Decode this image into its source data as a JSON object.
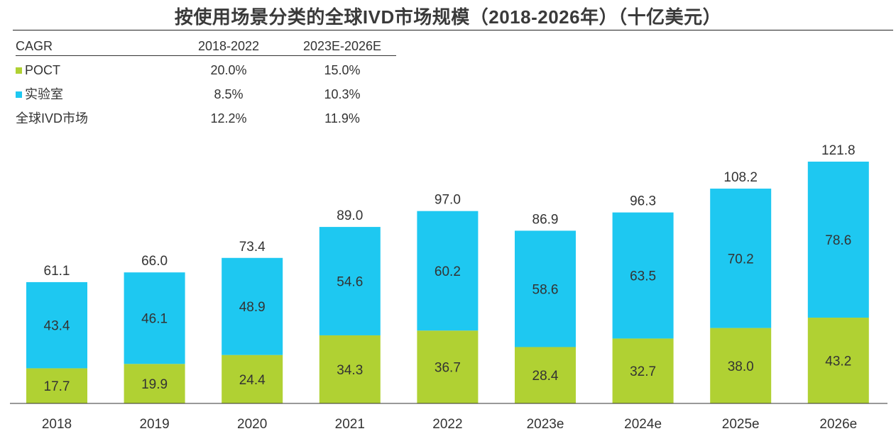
{
  "chart_data": {
    "type": "bar",
    "stacked": true,
    "title": "按使用场景分类的全球IVD市场规模（2018-2026年）（十亿美元）",
    "categories": [
      "2018",
      "2019",
      "2020",
      "2021",
      "2022",
      "2023e",
      "2024e",
      "2025e",
      "2026e"
    ],
    "series": [
      {
        "name": "POCT",
        "color": "#b0d133",
        "values": [
          17.7,
          19.9,
          24.4,
          34.3,
          36.7,
          28.4,
          32.7,
          38.0,
          43.2
        ]
      },
      {
        "name": "实验室",
        "color": "#1ec8f1",
        "values": [
          43.4,
          46.1,
          48.9,
          54.6,
          60.2,
          58.6,
          63.5,
          70.2,
          78.6
        ]
      }
    ],
    "totals": [
      "61.1",
      "66.0",
      "73.4",
      "89.0",
      "97.0",
      "86.9",
      "96.3",
      "108.2",
      "121.8"
    ],
    "ylim": [
      0,
      130
    ],
    "xlabel": "",
    "ylabel": "",
    "cagr_table": {
      "header": [
        "CAGR",
        "2018-2022",
        "2023E-2026E"
      ],
      "rows": [
        {
          "label": "POCT",
          "swatch": "#b0d133",
          "values": [
            "20.0%",
            "15.0%"
          ]
        },
        {
          "label": "实验室",
          "swatch": "#1ec8f1",
          "values": [
            "8.5%",
            "10.3%"
          ]
        },
        {
          "label": "全球IVD市场",
          "swatch": "",
          "values": [
            "12.2%",
            "11.9%"
          ]
        }
      ]
    }
  }
}
